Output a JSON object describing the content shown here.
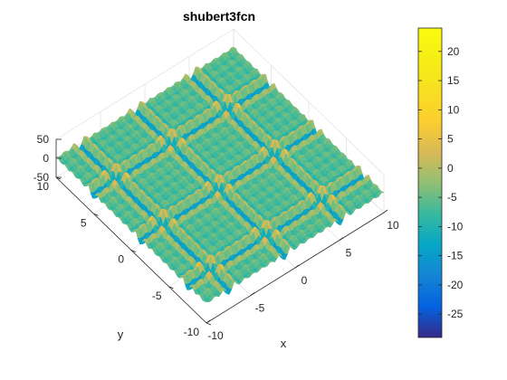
{
  "chart_data": {
    "type": "surface",
    "function": "shubert3fcn",
    "title": "shubert3fcn",
    "xlabel": "x",
    "ylabel": "y",
    "zlabel": "",
    "xlim": [
      -10,
      10
    ],
    "ylim": [
      -10,
      10
    ],
    "zlim": [
      -50,
      50
    ],
    "x_ticks": [
      -10,
      -5,
      0,
      5,
      10
    ],
    "y_ticks": [
      -10,
      -5,
      0,
      5,
      10
    ],
    "z_ticks": [
      -50,
      0,
      50
    ],
    "x_tick_labels": [
      "-10",
      "-5",
      "0",
      "5",
      "10"
    ],
    "y_tick_labels": [
      "-10",
      "-5",
      "0",
      "5",
      "10"
    ],
    "z_tick_labels": [
      "-50",
      "0",
      "50"
    ],
    "colormap": "parula",
    "colorbar": {
      "range": [
        -29,
        24
      ],
      "ticks": [
        20,
        15,
        10,
        5,
        0,
        -5,
        -10,
        -15,
        -20,
        -25
      ],
      "tick_labels": [
        "20",
        "15",
        "10",
        "5",
        "0",
        "-5",
        "-10",
        "-15",
        "-20",
        "-25"
      ]
    },
    "grid": true,
    "box": "back planes"
  }
}
